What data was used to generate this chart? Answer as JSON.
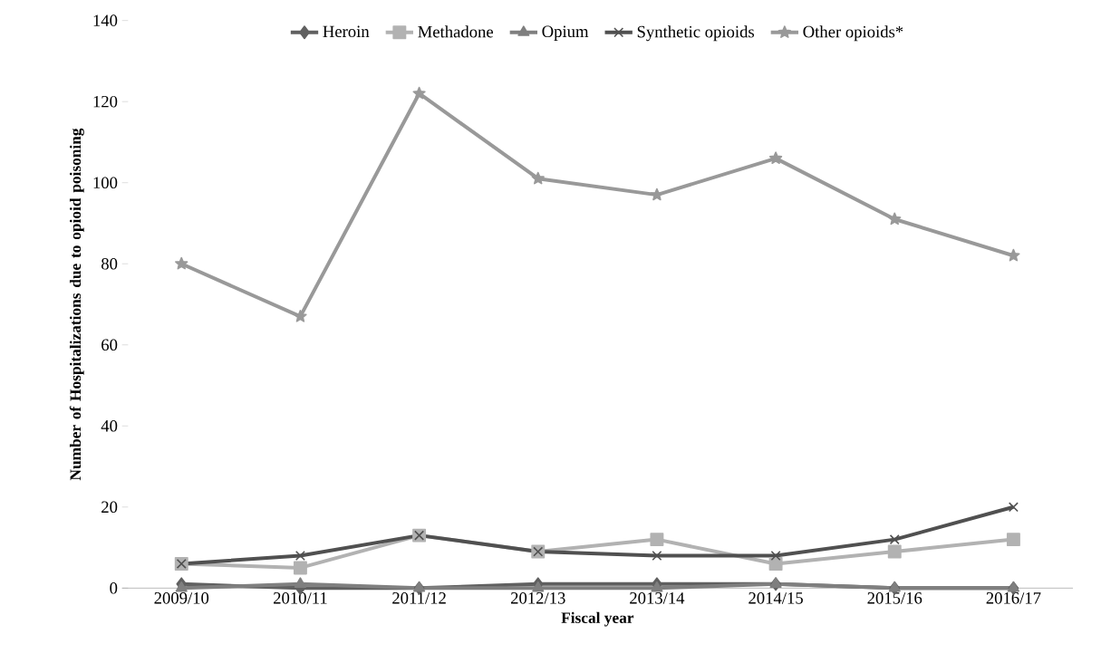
{
  "chart_data": {
    "type": "line",
    "xlabel": "Fiscal year",
    "ylabel": "Number of Hospitalizations due to opioid poisoning",
    "categories": [
      "2009/10",
      "2010/11",
      "2011/12",
      "2012/13",
      "2013/14",
      "2014/15",
      "2015/16",
      "2016/17"
    ],
    "ylim": [
      0,
      140
    ],
    "yticks": [
      0,
      20,
      40,
      60,
      80,
      100,
      120,
      140
    ],
    "grid": false,
    "legend": "top",
    "series": [
      {
        "name": "Heroin",
        "color": "#606060",
        "marker": "diamond",
        "values": [
          1,
          0,
          0,
          1,
          1,
          1,
          0,
          0
        ]
      },
      {
        "name": "Methadone",
        "color": "#b2b2b2",
        "marker": "square",
        "values": [
          6,
          5,
          13,
          9,
          12,
          6,
          9,
          12
        ]
      },
      {
        "name": "Opium",
        "color": "#7f7f7f",
        "marker": "triangle",
        "values": [
          0,
          1,
          0,
          0,
          0,
          1,
          0,
          0
        ]
      },
      {
        "name": "Synthetic opioids",
        "color": "#505050",
        "marker": "cross",
        "values": [
          6,
          8,
          13,
          9,
          8,
          8,
          12,
          20
        ]
      },
      {
        "name": "Other opioids*",
        "color": "#999999",
        "marker": "star",
        "values": [
          80,
          67,
          122,
          101,
          97,
          106,
          91,
          82
        ]
      }
    ]
  }
}
